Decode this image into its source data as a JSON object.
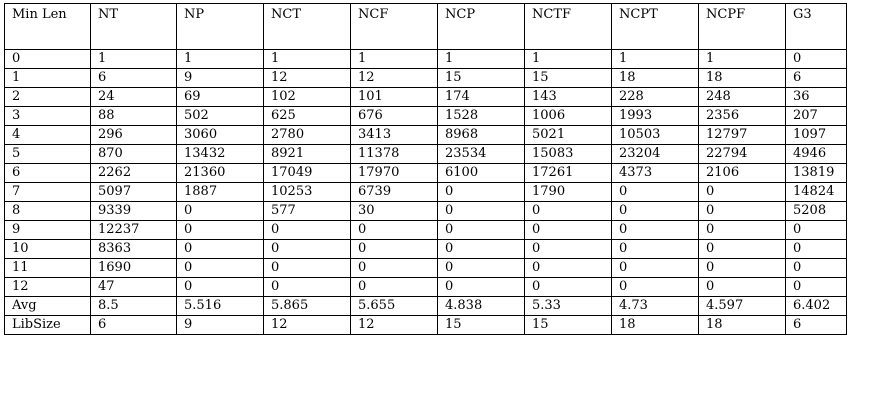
{
  "table": {
    "headers": [
      "Min Len",
      "NT",
      "NP",
      "NCT",
      "NCF",
      "NCP",
      "NCTF",
      "NCPT",
      "NCPF",
      "G3"
    ],
    "rows": [
      [
        "0",
        "1",
        "1",
        "1",
        "1",
        "1",
        "1",
        "1",
        "1",
        "0"
      ],
      [
        "1",
        "6",
        "9",
        "12",
        "12",
        "15",
        "15",
        "18",
        "18",
        "6"
      ],
      [
        "2",
        "24",
        "69",
        "102",
        "101",
        "174",
        "143",
        "228",
        "248",
        "36"
      ],
      [
        "3",
        "88",
        "502",
        "625",
        "676",
        "1528",
        "1006",
        "1993",
        "2356",
        "207"
      ],
      [
        "4",
        "296",
        "3060",
        "2780",
        "3413",
        "8968",
        "5021",
        "10503",
        "12797",
        "1097"
      ],
      [
        "5",
        "870",
        "13432",
        "8921",
        "11378",
        "23534",
        "15083",
        "23204",
        "22794",
        "4946"
      ],
      [
        "6",
        "2262",
        "21360",
        "17049",
        "17970",
        "6100",
        "17261",
        "4373",
        "2106",
        "13819"
      ],
      [
        "7",
        "5097",
        "1887",
        "10253",
        "6739",
        "0",
        "1790",
        "0",
        "0",
        "14824"
      ],
      [
        "8",
        "9339",
        "0",
        "577",
        "30",
        "0",
        "0",
        "0",
        "0",
        "5208"
      ],
      [
        "9",
        "12237",
        "0",
        "0",
        "0",
        "0",
        "0",
        "0",
        "0",
        "0"
      ],
      [
        "10",
        "8363",
        "0",
        "0",
        "0",
        "0",
        "0",
        "0",
        "0",
        "0"
      ],
      [
        "11",
        "1690",
        "0",
        "0",
        "0",
        "0",
        "0",
        "0",
        "0",
        "0"
      ],
      [
        "12",
        "47",
        "0",
        "0",
        "0",
        "0",
        "0",
        "0",
        "0",
        "0"
      ],
      [
        "Avg",
        "8.5",
        "5.516",
        "5.865",
        "5.655",
        "4.838",
        "5.33",
        "4.73",
        "4.597",
        "6.402"
      ],
      [
        "LibSize",
        "6",
        "9",
        "12",
        "12",
        "15",
        "15",
        "18",
        "18",
        "6"
      ]
    ]
  }
}
